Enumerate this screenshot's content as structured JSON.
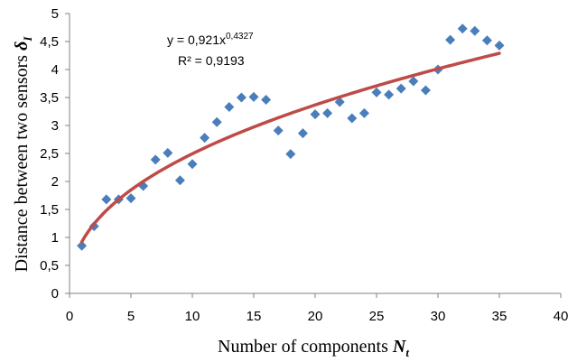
{
  "chart_data": {
    "type": "scatter",
    "xlabel": "Number of components",
    "xlabel_symbol": "N",
    "xlabel_subscript": "t",
    "ylabel": "Distance between two sensors",
    "ylabel_symbol": "δ",
    "ylabel_subscript": "I",
    "xlim": [
      0,
      40
    ],
    "ylim": [
      0,
      5
    ],
    "x_ticks": [
      "0",
      "5",
      "10",
      "15",
      "20",
      "25",
      "30",
      "35",
      "40"
    ],
    "y_ticks": [
      "0",
      "0,5",
      "1",
      "1,5",
      "2",
      "2,5",
      "3",
      "3,5",
      "4",
      "4,5",
      "5"
    ],
    "grid": false,
    "legend": "none",
    "series": [
      {
        "marker": "diamond",
        "color": "#4a7ebb",
        "x": [
          1,
          2,
          3,
          4,
          5,
          6,
          7,
          8,
          9,
          10,
          11,
          12,
          13,
          14,
          15,
          16,
          17,
          18,
          19,
          20,
          21,
          22,
          23,
          24,
          25,
          26,
          27,
          28,
          29,
          30,
          31,
          32,
          33,
          34,
          35
        ],
        "y": [
          0.85,
          1.2,
          1.68,
          1.68,
          1.7,
          1.92,
          2.39,
          2.51,
          2.02,
          2.31,
          2.78,
          3.06,
          3.33,
          3.5,
          3.51,
          3.46,
          2.91,
          2.49,
          2.86,
          3.2,
          3.22,
          3.42,
          3.13,
          3.22,
          3.59,
          3.55,
          3.66,
          3.79,
          3.63,
          4.0,
          4.53,
          4.73,
          4.69,
          4.52,
          4.43
        ]
      }
    ],
    "trendline": {
      "type": "power",
      "coefficient": 0.921,
      "exponent": 0.4327,
      "x_range": [
        1,
        35
      ],
      "color": "#be4b48",
      "equation_text": "y = 0,921x",
      "equation_exponent_text": "0,4327",
      "r2_text": "R² = 0,9193"
    }
  }
}
